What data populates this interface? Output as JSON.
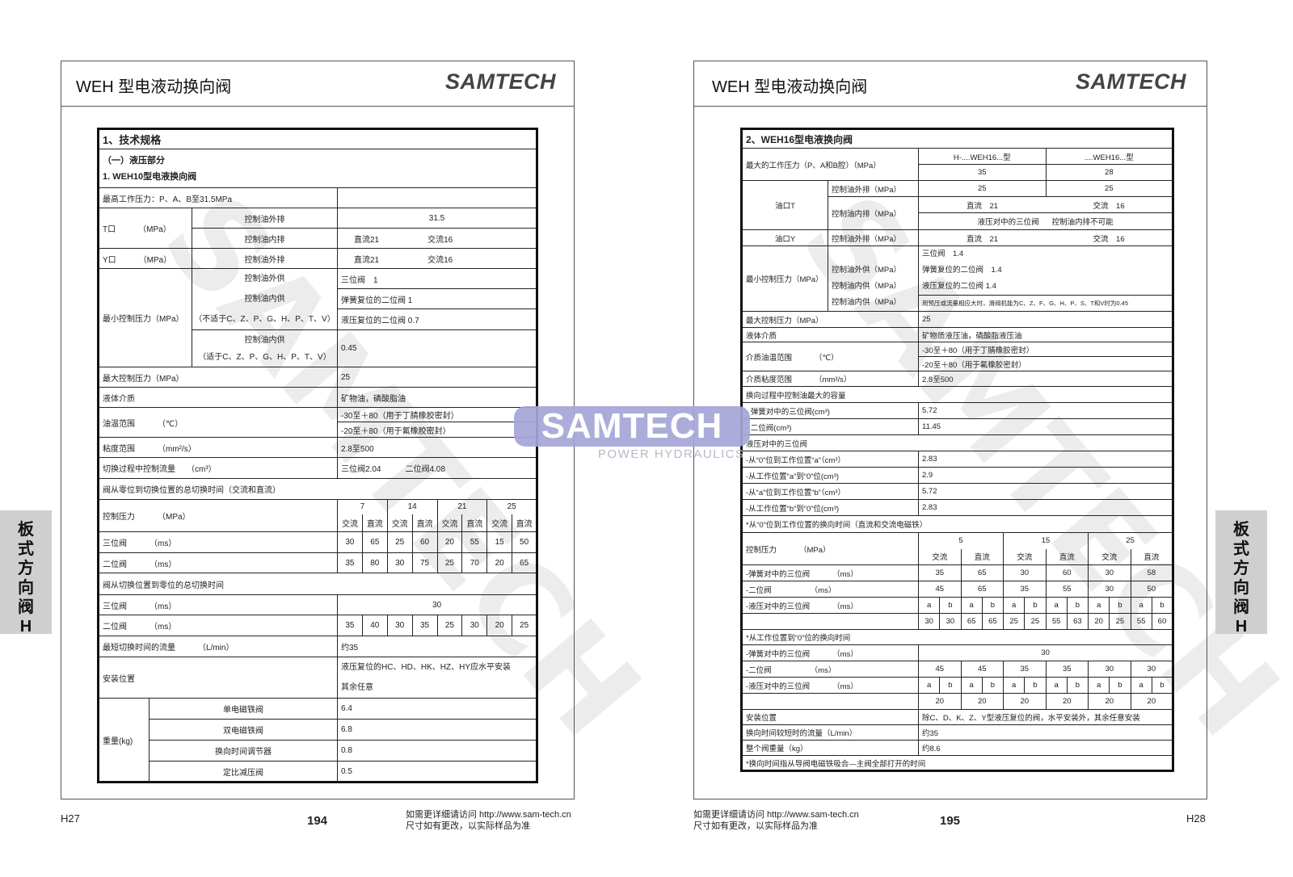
{
  "left": {
    "header_title": "WEH 型电液动换向阀",
    "logo": "SAMTECH",
    "watermark": "SAMTECH",
    "side_tab": "板式方向阀H",
    "page_code": "H27",
    "page_number": "194",
    "footer_lines": [
      "如需更详细请访问 http://www.sam-tech.cn",
      "尺寸如有更改，以实际样品为准"
    ],
    "table": {
      "title": "1、技术规格",
      "section": "（一）液压部分",
      "subsection": "1. WEH10型电液换向阀",
      "max_pressure": "最高工作压力：P、A、B至31.5MPa",
      "t_port": {
        "label": "T口",
        "unit": "（MPa）",
        "ext_label": "控制油外排",
        "ext_value": "31.5",
        "int_label": "控制油内排",
        "int_dc": "直流21",
        "int_ac": "交流16"
      },
      "y_port": {
        "label": "Y口",
        "unit": "（MPa）",
        "ext_label": "控制油外排",
        "dc": "直流21",
        "ac": "交流16"
      },
      "min_pressure": {
        "label": "最小控制压力（MPa）",
        "ext_supply": "控制油外供",
        "int_supply": "控制油内供",
        "int_note": "（不适于C、Z、P、G、H、P、T、V）",
        "values": [
          "三位阀　1",
          "弹簧复位的二位阀 1",
          "液压复位的二位阀 0.7"
        ],
        "int_supply2": "控制油内供",
        "int_note2": "（适于C、Z、P、G、H、P、T、V）",
        "value2": "0.45"
      },
      "max_control": {
        "label": "最大控制压力",
        "unit": "（MPa）",
        "value": "25"
      },
      "fluid": {
        "label": "液体介质",
        "value": "矿物油，磷酸脂油"
      },
      "oil_temp": {
        "label": "油温范围",
        "unit": "（℃）",
        "values": [
          "-30至＋80（用于丁腈橡胶密封）",
          "-20至＋80（用于氟橡胶密封）"
        ]
      },
      "viscosity": {
        "label": "粘度范围",
        "unit": "（mm²/s）",
        "value": "2.8至500"
      },
      "control_flow": {
        "label": "切换过程中控制流量",
        "unit": "（cm³）",
        "three": "三位阀2.04",
        "two": "二位阀4.08"
      },
      "switch_on_title": "阀从零位到切换位置的总切换时间（交流和直流）",
      "control_pressure": {
        "label": "控制压力",
        "unit": "（MPa）"
      },
      "pressures": [
        "7",
        "14",
        "21",
        "25"
      ],
      "ac": "交流",
      "dc": "直流",
      "three_pos": {
        "label": "三位阀",
        "unit": "（ms）",
        "values": [
          "30",
          "65",
          "25",
          "60",
          "20",
          "55",
          "15",
          "50"
        ]
      },
      "two_pos": {
        "label": "二位阀",
        "unit": "（ms）",
        "values": [
          "35",
          "80",
          "30",
          "75",
          "25",
          "70",
          "20",
          "65"
        ]
      },
      "switch_off_title": "阀从切换位置到零位的总切换时间",
      "off_three_pos": {
        "label": "三位阀",
        "unit": "（ms）",
        "value": "30"
      },
      "off_two_pos": {
        "label": "二位阀",
        "unit": "（ms）",
        "values": [
          "35",
          "40",
          "30",
          "35",
          "25",
          "30",
          "20",
          "25"
        ]
      },
      "min_flow": {
        "label": "最短切换时间的流量",
        "unit": "（L/min）",
        "value": "约35"
      },
      "mounting": {
        "label": "安装位置",
        "values": [
          "液压复位的HC、HD、HK、HZ、HY应水平安装",
          "其余任意"
        ]
      },
      "weight": {
        "label": "重量(kg)",
        "rows": [
          {
            "label": "单电磁铁阀",
            "value": "6.4"
          },
          {
            "label": "双电磁铁阀",
            "value": "6.8"
          },
          {
            "label": "换向时间调节器",
            "value": "0.8"
          },
          {
            "label": "定比减压阀",
            "value": "0.5"
          }
        ]
      }
    }
  },
  "center_logo": {
    "text": "SAMTECH",
    "subtitle": "POWER HYDRAULICS",
    "color": "#a6a6d8"
  },
  "right": {
    "header_title": "WEH 型电液动换向阀",
    "logo": "SAMTECH",
    "watermark": "SAMTECH",
    "side_tab": "板式方向阀H",
    "page_code": "H28",
    "page_number": "195",
    "footer_lines": [
      "如需更详细请访问 http://www.sam-tech.cn",
      "尺寸如有更改，以实际样品为准"
    ],
    "table": {
      "title": "2、WEH16型电液换向阀",
      "max_pressure": {
        "label": "最大的工作压力（P、A和B腔）（MPa）",
        "types": [
          "H-....WEH16...型",
          "....WEH16...型"
        ],
        "values": [
          "35",
          "28"
        ]
      },
      "t_port": {
        "label": "油口T",
        "ext_label": "控制油外排（MPa）",
        "ext_values": [
          "25",
          "25"
        ],
        "int_label": "控制油内排（MPa）",
        "int_dc": "直流　21",
        "int_ac": "交流　16",
        "int_note_a": "液压对中的三位阀",
        "int_note_b": "控制油内排不可能"
      },
      "y_port": {
        "label": "油口Y",
        "ext_label": "控制油外排（MPa）",
        "dc": "直流　21",
        "ac": "交流　16"
      },
      "min_pressure": {
        "label": "最小控制压力（MPa）",
        "sub_labels": [
          "控制油外供（MPa）",
          "控制油内供（MPa）",
          "控制油内供（MPa）"
        ],
        "values": [
          "三位阀　1.4",
          "弹簧复位的二位阀　1.4",
          "液压复位的二位阀 1.4"
        ],
        "note": "用预压或流量相应大时，滑阀机能为C、Z、F、G、H、P、S、T和V时为0.45"
      },
      "max_control": {
        "label": "最大控制压力（MPa）",
        "value": "25"
      },
      "fluid": {
        "label": "液体介质",
        "value": "矿物质液压油，磷酸脂液压油"
      },
      "oil_temp": {
        "label": "介质油温范围",
        "unit": "（℃）",
        "values": [
          "-30至＋80（用于丁腈橡胶密封）",
          "-20至＋80（用于氟橡胶密封）"
        ]
      },
      "viscosity": {
        "label": "介质粘度范围",
        "unit": "（mm²/s）",
        "value": "2.8至500"
      },
      "capacity_title": "换向过程中控制油最大的容量",
      "capacity_rows": [
        {
          "label": "- 弹簧对中的三位阀(cm³)",
          "value": "5.72"
        },
        {
          "label": "- 二位阀(cm³)",
          "value": "11.45"
        }
      ],
      "hydraulic_title": "液压对中的三位阀",
      "hydraulic_rows": [
        {
          "label": "-从“0”位到工作位置“a”（cm³）",
          "value": "2.83"
        },
        {
          "label": "-从工作位置“a”到“0”位(cm³)",
          "value": "2.9"
        },
        {
          "label": "-从“a”位到工作位置“b”（cm³）",
          "value": "5.72"
        },
        {
          "label": "-从工作位置“b”到“0”位(cm³)",
          "value": "2.83"
        }
      ],
      "on_title": "*从“0”位到工作位置的换向时间（直流和交流电磁铁）",
      "control_pressure": {
        "label": "控制压力",
        "unit": "（MPa）"
      },
      "pressures": [
        "5",
        "15",
        "25"
      ],
      "ac": "交流",
      "dc": "直流",
      "a": "a",
      "b": "b",
      "on_spring": {
        "label": "-弹簧对中的三位阀",
        "unit": "（ms）",
        "values": [
          "35",
          "65",
          "30",
          "60",
          "30",
          "58"
        ]
      },
      "on_two": {
        "label": "-二位阀",
        "unit": "（ms）",
        "values": [
          "45",
          "65",
          "35",
          "55",
          "30",
          "50"
        ]
      },
      "on_hyd": {
        "label": "-液压对中的三位阀",
        "unit": "（ms）",
        "values": [
          "30",
          "30",
          "65",
          "65",
          "25",
          "25",
          "55",
          "63",
          "20",
          "25",
          "55",
          "60"
        ]
      },
      "off_title": "*从工作位置到“0”位的换向时间",
      "off_spring": {
        "label": "-弹簧对中的三位阀",
        "unit": "（ms）",
        "value": "30"
      },
      "off_two": {
        "label": "-二位阀",
        "unit": "（ms）",
        "values": [
          "45",
          "45",
          "35",
          "35",
          "30",
          "30"
        ]
      },
      "off_hyd": {
        "label": "-液压对中的三位阀",
        "unit": "（ms）",
        "values": [
          "20",
          "20",
          "20",
          "20",
          "20",
          "20"
        ]
      },
      "mounting": {
        "label": "安装位置",
        "value": "除C、D、K、Z、Y型液压复位的阀，水平安装外，其余任意安装"
      },
      "flow": {
        "label": "换向时间较短时的流量（L/min）",
        "value": "约35"
      },
      "weight": {
        "label": "整个阀重量（kg）",
        "value": "约8.6"
      },
      "footnote": "*换向时间指从导阀电磁铁吸合—主阀全部打开的时间"
    }
  }
}
